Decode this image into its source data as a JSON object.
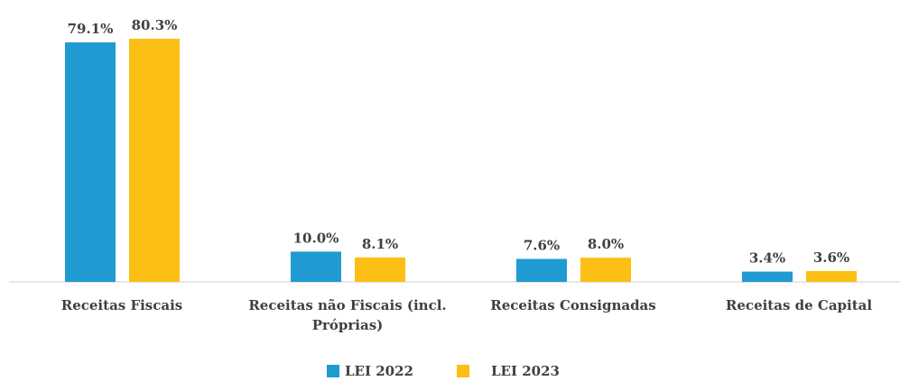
{
  "chart_data": {
    "type": "bar",
    "categories": [
      "Receitas Fiscais",
      "Receitas não Fiscais (incl. Próprias)",
      "Receitas Consignadas",
      "Receitas de Capital"
    ],
    "series": [
      {
        "name": "LEI 2022",
        "color": "#1f9bd1",
        "values": [
          79.1,
          10.0,
          7.6,
          3.4
        ],
        "value_labels": [
          "79.1%",
          "10.0%",
          "7.6%",
          "3.4%"
        ]
      },
      {
        "name": "LEI 2023",
        "color": "#fbbf15",
        "values": [
          80.3,
          8.1,
          8.0,
          3.6
        ],
        "value_labels": [
          "80.3%",
          "8.1%",
          "8.0%",
          "3.6%"
        ]
      }
    ],
    "legend": "bottom"
  }
}
